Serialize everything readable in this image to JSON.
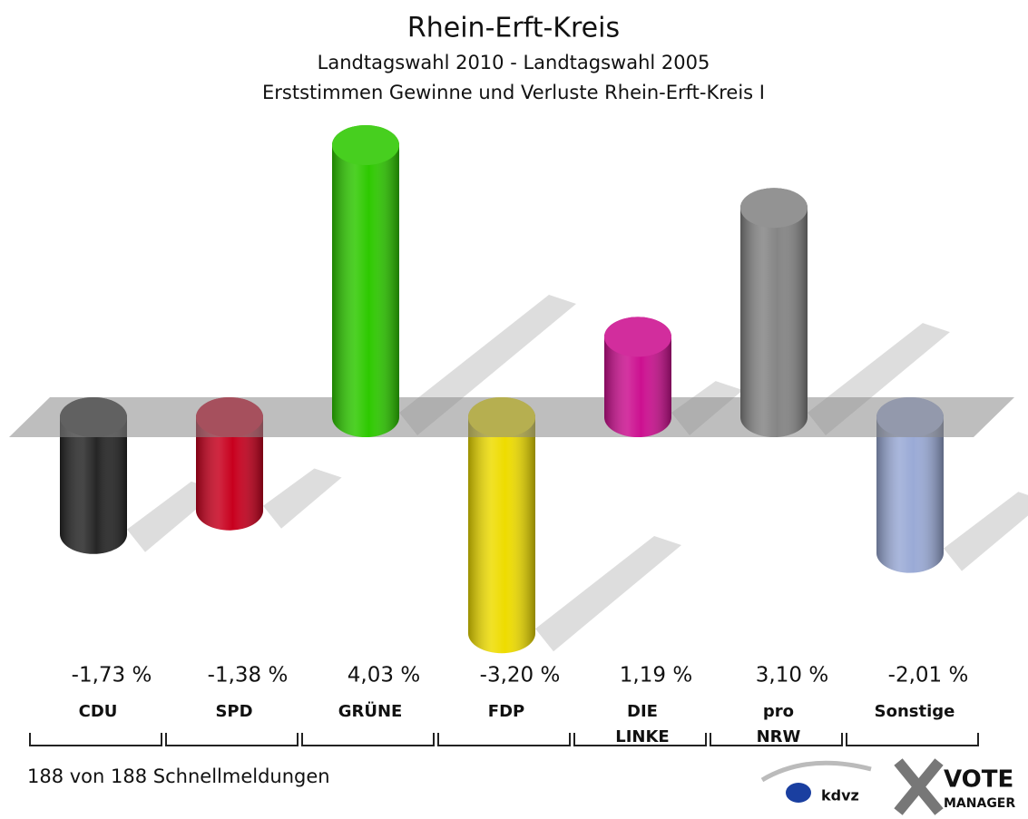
{
  "chart_data": {
    "type": "bar",
    "title": "Rhein-Erft-Kreis",
    "subtitle": [
      "Landtagswahl 2010 - Landtagswahl 2005",
      "Erststimmen Gewinne und Verluste Rhein-Erft-Kreis I"
    ],
    "categories": [
      "CDU",
      "SPD",
      "GRÜNE",
      "FDP",
      "DIE LINKE",
      "pro NRW",
      "Sonstige"
    ],
    "values": [
      -1.73,
      -1.38,
      4.03,
      -3.2,
      1.19,
      3.1,
      -2.01
    ],
    "value_labels": [
      "-1,73 %",
      "-1,38 %",
      "4,03 %",
      "-3,20 %",
      "1,19 %",
      "3,10 %",
      "-2,01 %"
    ],
    "colors": [
      "#262626",
      "#c8001e",
      "#2ec900",
      "#eedc00",
      "#cc1090",
      "#858585",
      "#9aaad6"
    ],
    "footnote": "188 von 188 Schnellmeldungen",
    "logo": [
      "kdvz",
      "VOTE",
      "MANAGER"
    ]
  }
}
